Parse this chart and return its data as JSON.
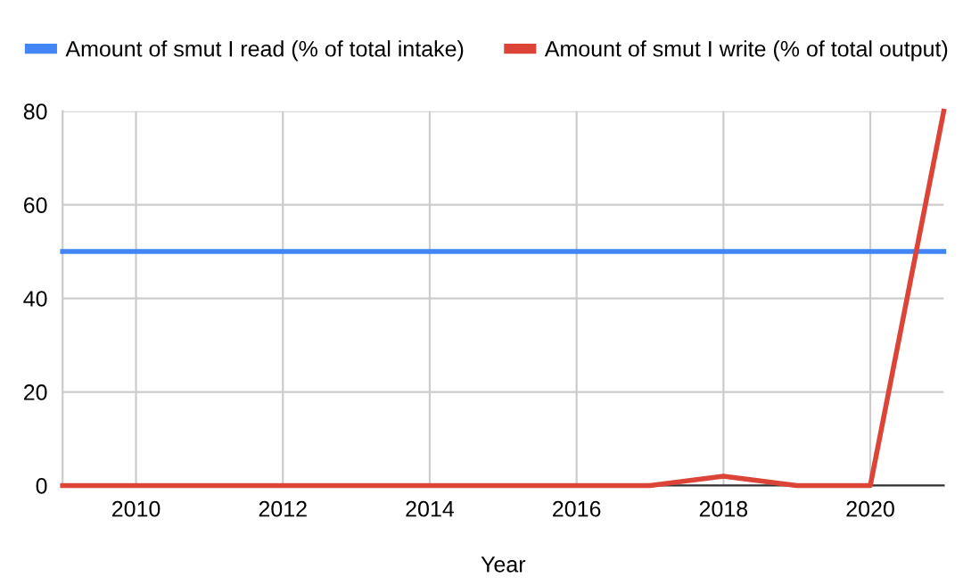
{
  "chart_data": {
    "type": "line",
    "xlabel": "Year",
    "x": [
      2009,
      2010,
      2011,
      2012,
      2013,
      2014,
      2015,
      2016,
      2017,
      2018,
      2019,
      2020,
      2021
    ],
    "series": [
      {
        "name": "Amount of smut I read (% of total intake)",
        "color": "#4285f4",
        "values": [
          50,
          50,
          50,
          50,
          50,
          50,
          50,
          50,
          50,
          50,
          50,
          50,
          50
        ]
      },
      {
        "name": "Amount of smut I write (% of total output)",
        "color": "#db4437",
        "values": [
          0,
          0,
          0,
          0,
          0,
          0,
          0,
          0,
          0,
          2,
          0,
          0,
          80
        ]
      }
    ],
    "xlim": [
      2009,
      2021
    ],
    "xticks": [
      2010,
      2012,
      2014,
      2016,
      2018,
      2020
    ],
    "ylim": [
      0,
      80
    ],
    "yticks": [
      0,
      20,
      40,
      60,
      80
    ],
    "grid": true,
    "legend": "top left",
    "marker": "none",
    "line_style": "solid"
  }
}
